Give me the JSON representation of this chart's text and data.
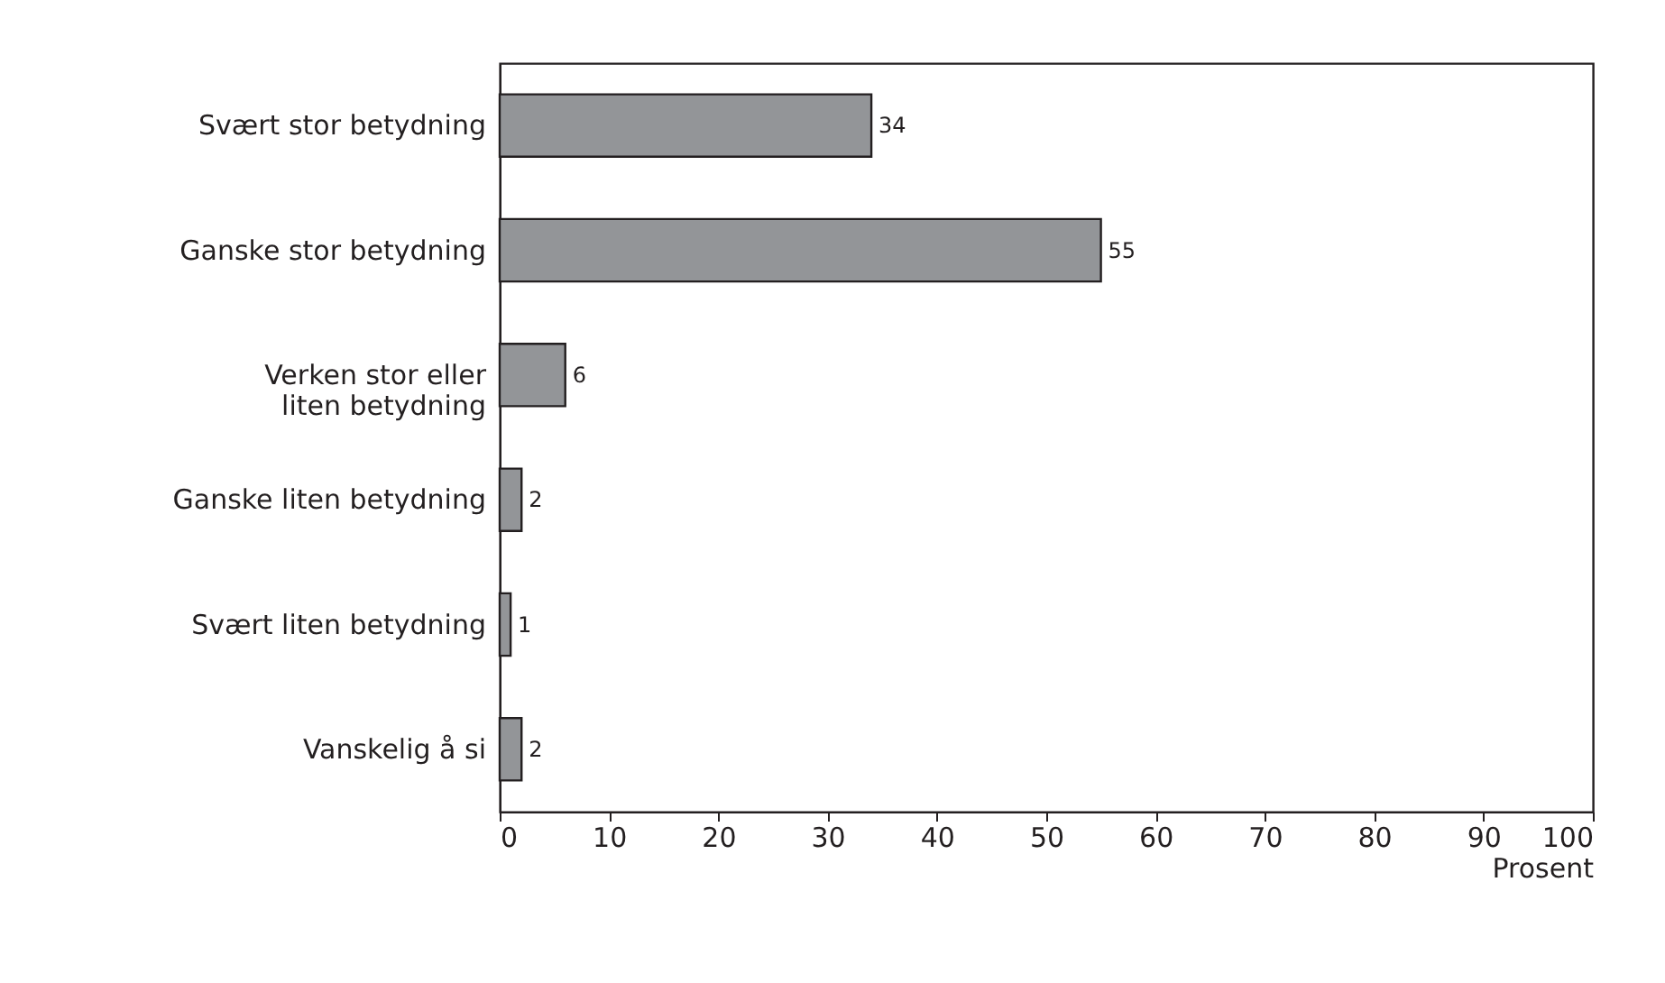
{
  "chart_data": {
    "type": "bar",
    "orientation": "horizontal",
    "categories": [
      "Svært stor betydning",
      "Ganske stor betydning",
      "Verken stor eller\nliten betydning",
      "Ganske liten betydning",
      "Svært liten betydning",
      "Vanskelig å si"
    ],
    "values": [
      34,
      55,
      6,
      2,
      1,
      2
    ],
    "color": "#939598",
    "xlim": [
      0,
      100
    ],
    "xticks": [
      0,
      10,
      20,
      30,
      40,
      50,
      60,
      70,
      80,
      90,
      100
    ],
    "xlabel": "Prosent",
    "data_labels": true,
    "grid": false
  }
}
